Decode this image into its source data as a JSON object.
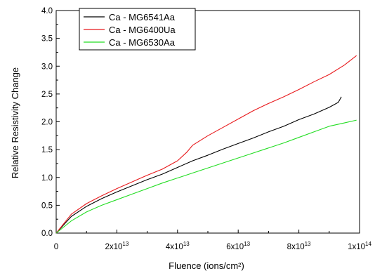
{
  "chart_data": {
    "type": "line",
    "title": "",
    "xlabel": "Fluence (ions/cm²)",
    "ylabel": "Relative Resistivity Change",
    "xlim": [
      0,
      100000000000000.0
    ],
    "ylim": [
      0,
      4.0
    ],
    "x_ticks": [
      {
        "value": 0,
        "label": "0",
        "exp": ""
      },
      {
        "value": 20000000000000.0,
        "label": "2x10",
        "exp": "13"
      },
      {
        "value": 40000000000000.0,
        "label": "4x10",
        "exp": "13"
      },
      {
        "value": 60000000000000.0,
        "label": "6x10",
        "exp": "13"
      },
      {
        "value": 80000000000000.0,
        "label": "8x10",
        "exp": "13"
      },
      {
        "value": 100000000000000.0,
        "label": "1x10",
        "exp": "14"
      }
    ],
    "y_ticks": [
      {
        "value": 0.0,
        "label": "0.0"
      },
      {
        "value": 0.5,
        "label": "0.5"
      },
      {
        "value": 1.0,
        "label": "1.0"
      },
      {
        "value": 1.5,
        "label": "1.5"
      },
      {
        "value": 2.0,
        "label": "2.0"
      },
      {
        "value": 2.5,
        "label": "2.5"
      },
      {
        "value": 3.0,
        "label": "3.0"
      },
      {
        "value": 3.5,
        "label": "3.5"
      },
      {
        "value": 4.0,
        "label": "4.0"
      }
    ],
    "grid": false,
    "legend_position": "top-left",
    "series": [
      {
        "name": "Ca - MG6541Aa",
        "color": "#000000",
        "x": [
          0,
          5000000000000.0,
          10000000000000.0,
          15000000000000.0,
          20000000000000.0,
          25000000000000.0,
          30000000000000.0,
          35000000000000.0,
          40000000000000.0,
          45000000000000.0,
          50000000000000.0,
          55000000000000.0,
          60000000000000.0,
          65000000000000.0,
          70000000000000.0,
          75000000000000.0,
          80000000000000.0,
          85000000000000.0,
          90000000000000.0,
          93000000000000.0,
          94000000000000.0
        ],
        "y": [
          0,
          0.3,
          0.48,
          0.62,
          0.74,
          0.85,
          0.96,
          1.06,
          1.18,
          1.3,
          1.4,
          1.51,
          1.61,
          1.71,
          1.82,
          1.92,
          2.04,
          2.14,
          2.26,
          2.35,
          2.45
        ]
      },
      {
        "name": "Ca - MG6400Ua",
        "color": "#e8191c",
        "x": [
          0,
          5000000000000.0,
          10000000000000.0,
          15000000000000.0,
          20000000000000.0,
          25000000000000.0,
          30000000000000.0,
          35000000000000.0,
          40000000000000.0,
          43000000000000.0,
          45000000000000.0,
          50000000000000.0,
          55000000000000.0,
          60000000000000.0,
          65000000000000.0,
          70000000000000.0,
          75000000000000.0,
          80000000000000.0,
          85000000000000.0,
          90000000000000.0,
          95000000000000.0,
          99000000000000.0
        ],
        "y": [
          0,
          0.34,
          0.53,
          0.67,
          0.8,
          0.92,
          1.04,
          1.15,
          1.3,
          1.45,
          1.58,
          1.75,
          1.9,
          2.05,
          2.2,
          2.33,
          2.45,
          2.58,
          2.72,
          2.85,
          3.02,
          3.19
        ]
      },
      {
        "name": "Ca - MG6530Aa",
        "color": "#22dd22",
        "x": [
          0,
          5000000000000.0,
          10000000000000.0,
          15000000000000.0,
          20000000000000.0,
          25000000000000.0,
          30000000000000.0,
          35000000000000.0,
          40000000000000.0,
          45000000000000.0,
          50000000000000.0,
          55000000000000.0,
          60000000000000.0,
          65000000000000.0,
          70000000000000.0,
          75000000000000.0,
          80000000000000.0,
          85000000000000.0,
          90000000000000.0,
          95000000000000.0,
          99000000000000.0
        ],
        "y": [
          0,
          0.22,
          0.38,
          0.5,
          0.6,
          0.7,
          0.8,
          0.9,
          0.99,
          1.08,
          1.17,
          1.26,
          1.35,
          1.44,
          1.53,
          1.62,
          1.72,
          1.82,
          1.92,
          1.98,
          2.03
        ]
      }
    ]
  }
}
